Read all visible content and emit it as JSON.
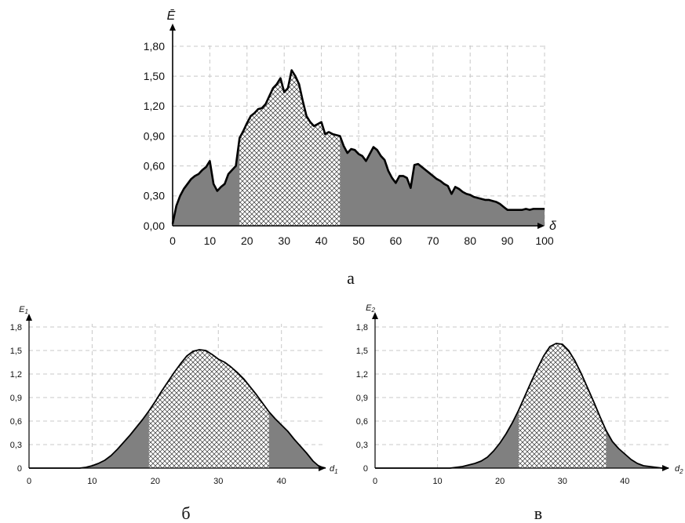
{
  "chart_data": [
    {
      "id": "a",
      "type": "area",
      "caption": "а",
      "ylabel": "Ē",
      "xlabel": "δ",
      "xlim": [
        0,
        100
      ],
      "ylim": [
        0,
        1.8
      ],
      "x_ticks": [
        "0",
        "10",
        "20",
        "30",
        "40",
        "50",
        "60",
        "70",
        "80",
        "90",
        "100"
      ],
      "y_ticks": [
        "0,00",
        "0,30",
        "0,60",
        "0,90",
        "1,20",
        "1,50",
        "1,80"
      ],
      "grid": true,
      "highlight_range": [
        18,
        45
      ],
      "x": [
        0,
        1,
        2,
        3,
        4,
        5,
        6,
        7,
        8,
        9,
        10,
        11,
        12,
        13,
        14,
        15,
        16,
        17,
        18,
        19,
        20,
        21,
        22,
        23,
        24,
        25,
        26,
        27,
        28,
        29,
        30,
        31,
        32,
        33,
        34,
        35,
        36,
        37,
        38,
        39,
        40,
        41,
        42,
        43,
        44,
        45,
        46,
        47,
        48,
        49,
        50,
        51,
        52,
        53,
        54,
        55,
        56,
        57,
        58,
        59,
        60,
        61,
        62,
        63,
        64,
        65,
        66,
        67,
        68,
        69,
        70,
        71,
        72,
        73,
        74,
        75,
        76,
        77,
        78,
        79,
        80,
        81,
        82,
        83,
        84,
        85,
        86,
        87,
        88,
        89,
        90,
        91,
        92,
        93,
        94,
        95,
        96,
        97,
        98,
        99,
        100
      ],
      "y": [
        0.02,
        0.2,
        0.3,
        0.37,
        0.42,
        0.47,
        0.5,
        0.52,
        0.56,
        0.59,
        0.65,
        0.42,
        0.35,
        0.39,
        0.42,
        0.52,
        0.56,
        0.6,
        0.88,
        0.95,
        1.03,
        1.1,
        1.13,
        1.17,
        1.18,
        1.22,
        1.3,
        1.38,
        1.42,
        1.48,
        1.34,
        1.38,
        1.56,
        1.5,
        1.42,
        1.25,
        1.1,
        1.04,
        1.0,
        1.02,
        1.04,
        0.92,
        0.94,
        0.92,
        0.91,
        0.9,
        0.8,
        0.73,
        0.77,
        0.76,
        0.72,
        0.7,
        0.65,
        0.72,
        0.79,
        0.76,
        0.7,
        0.66,
        0.55,
        0.48,
        0.43,
        0.5,
        0.5,
        0.48,
        0.38,
        0.61,
        0.62,
        0.59,
        0.56,
        0.53,
        0.5,
        0.47,
        0.45,
        0.42,
        0.4,
        0.32,
        0.39,
        0.37,
        0.34,
        0.32,
        0.31,
        0.29,
        0.28,
        0.27,
        0.26,
        0.26,
        0.25,
        0.24,
        0.22,
        0.19,
        0.16,
        0.16,
        0.16,
        0.16,
        0.16,
        0.17,
        0.16,
        0.17,
        0.17,
        0.17,
        0.17
      ]
    },
    {
      "id": "b",
      "type": "area",
      "caption": "б",
      "ylabel": "E",
      "ylabel_sub": "1",
      "xlabel": "d",
      "xlabel_sub": "1",
      "xlim": [
        0,
        47
      ],
      "ylim": [
        0,
        1.8
      ],
      "x_ticks": [
        {
          "v": 0,
          "label": "0"
        },
        {
          "v": 10,
          "label": "10"
        },
        {
          "v": 20,
          "label": "20"
        },
        {
          "v": 30,
          "label": "30"
        },
        {
          "v": 40,
          "label": "40"
        }
      ],
      "y_ticks": [
        {
          "v": 0,
          "label": "0"
        },
        {
          "v": 0.3,
          "label": "0,3"
        },
        {
          "v": 0.6,
          "label": "0,6"
        },
        {
          "v": 0.9,
          "label": "0,9"
        },
        {
          "v": 1.2,
          "label": "1,2"
        },
        {
          "v": 1.5,
          "label": "1,5"
        },
        {
          "v": 1.8,
          "label": "1,8"
        }
      ],
      "grid": true,
      "highlight_range": [
        19,
        38
      ],
      "x": [
        0,
        8,
        9,
        10,
        11,
        12,
        13,
        14,
        15,
        16,
        17,
        18,
        19,
        20,
        21,
        22,
        23,
        24,
        25,
        26,
        27,
        28,
        29,
        30,
        31,
        32,
        33,
        34,
        35,
        36,
        37,
        38,
        39,
        40,
        41,
        42,
        43,
        44,
        45,
        46,
        47
      ],
      "y": [
        0,
        0,
        0.01,
        0.03,
        0.06,
        0.1,
        0.16,
        0.24,
        0.33,
        0.42,
        0.52,
        0.62,
        0.73,
        0.85,
        0.98,
        1.1,
        1.22,
        1.33,
        1.43,
        1.49,
        1.51,
        1.5,
        1.45,
        1.39,
        1.35,
        1.29,
        1.22,
        1.14,
        1.04,
        0.94,
        0.83,
        0.72,
        0.63,
        0.55,
        0.47,
        0.37,
        0.28,
        0.19,
        0.09,
        0.02,
        0
      ]
    },
    {
      "id": "c",
      "type": "area",
      "caption": "в",
      "ylabel": "E",
      "ylabel_sub": "2",
      "xlabel": "d",
      "xlabel_sub": "2",
      "xlim": [
        0,
        47
      ],
      "ylim": [
        0,
        1.8
      ],
      "x_ticks": [
        {
          "v": 0,
          "label": "0"
        },
        {
          "v": 10,
          "label": "10"
        },
        {
          "v": 20,
          "label": "20"
        },
        {
          "v": 30,
          "label": "30"
        },
        {
          "v": 40,
          "label": "40"
        }
      ],
      "y_ticks": [
        {
          "v": 0,
          "label": "0"
        },
        {
          "v": 0.3,
          "label": "0,3"
        },
        {
          "v": 0.6,
          "label": "0,6"
        },
        {
          "v": 0.9,
          "label": "0,9"
        },
        {
          "v": 1.2,
          "label": "1,2"
        },
        {
          "v": 1.5,
          "label": "1,5"
        },
        {
          "v": 1.8,
          "label": "1,8"
        }
      ],
      "grid": true,
      "highlight_range": [
        23,
        37
      ],
      "x": [
        0,
        12,
        13,
        14,
        15,
        16,
        17,
        18,
        19,
        20,
        21,
        22,
        23,
        24,
        25,
        26,
        27,
        28,
        29,
        30,
        31,
        32,
        33,
        34,
        35,
        36,
        37,
        38,
        39,
        40,
        41,
        42,
        43,
        44,
        45,
        46,
        47
      ],
      "y": [
        0,
        0,
        0.01,
        0.02,
        0.04,
        0.06,
        0.09,
        0.14,
        0.22,
        0.32,
        0.44,
        0.58,
        0.74,
        0.92,
        1.1,
        1.27,
        1.43,
        1.55,
        1.59,
        1.58,
        1.5,
        1.37,
        1.21,
        1.03,
        0.85,
        0.66,
        0.48,
        0.34,
        0.25,
        0.18,
        0.11,
        0.06,
        0.03,
        0.02,
        0.01,
        0,
        0
      ]
    }
  ]
}
